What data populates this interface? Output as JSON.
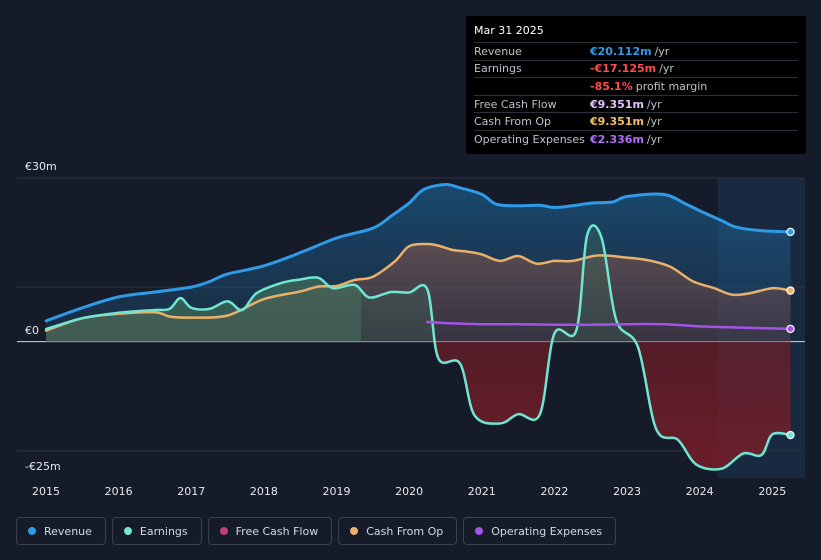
{
  "tooltip": {
    "date": "Mar 31 2025",
    "rows": [
      {
        "label": "Revenue",
        "value": "€20.112m",
        "unit": "/yr",
        "color": "#2f9be8"
      },
      {
        "label": "Earnings",
        "value": "-€17.125m",
        "unit": "/yr",
        "color": "#ff4d4d"
      },
      {
        "label": "",
        "value": "-85.1%",
        "unit": "profit margin",
        "color": "#ff4d4d"
      },
      {
        "label": "Free Cash Flow",
        "value": "€9.351m",
        "unit": "/yr",
        "color": "#e0c3ff"
      },
      {
        "label": "Cash From Op",
        "value": "€9.351m",
        "unit": "/yr",
        "color": "#f2c06c"
      },
      {
        "label": "Operating Expenses",
        "value": "€2.336m",
        "unit": "/yr",
        "color": "#b56cff"
      }
    ]
  },
  "legend": [
    {
      "label": "Revenue",
      "color": "#2f9be8"
    },
    {
      "label": "Earnings",
      "color": "#6fe5d2"
    },
    {
      "label": "Free Cash Flow",
      "color": "#c2407a"
    },
    {
      "label": "Cash From Op",
      "color": "#e9b06a"
    },
    {
      "label": "Operating Expenses",
      "color": "#a452ea"
    }
  ],
  "chart_data": {
    "type": "area",
    "title": "",
    "xlabel": "",
    "ylabel": "",
    "ylim": [
      -25,
      30
    ],
    "y_tick_labels": [
      "€30m",
      "€0",
      "-€25m"
    ],
    "y_ticks": [
      30,
      0,
      -25
    ],
    "x_tick_labels": [
      "2015",
      "2016",
      "2017",
      "2018",
      "2019",
      "2020",
      "2021",
      "2022",
      "2023",
      "2024",
      "2025"
    ],
    "x_ticks": [
      2015,
      2016,
      2017,
      2018,
      2019,
      2020,
      2021,
      2022,
      2023,
      2024,
      2025
    ],
    "xlim": [
      2014.6,
      2025.45
    ],
    "forecast_start": 2024.25,
    "series": [
      {
        "name": "Revenue",
        "color": "#2f9be8",
        "points": [
          [
            2015,
            3.8
          ],
          [
            2015.5,
            6.2
          ],
          [
            2016,
            8.2
          ],
          [
            2016.5,
            9.1
          ],
          [
            2017,
            10.0
          ],
          [
            2017.25,
            11.0
          ],
          [
            2017.5,
            12.4
          ],
          [
            2018,
            13.9
          ],
          [
            2018.5,
            16.3
          ],
          [
            2019,
            19.0
          ],
          [
            2019.5,
            20.8
          ],
          [
            2019.75,
            23.0
          ],
          [
            2020,
            25.4
          ],
          [
            2020.2,
            27.9
          ],
          [
            2020.5,
            28.8
          ],
          [
            2020.7,
            28.2
          ],
          [
            2021,
            27.0
          ],
          [
            2021.2,
            25.2
          ],
          [
            2021.5,
            24.9
          ],
          [
            2021.8,
            25.0
          ],
          [
            2022,
            24.6
          ],
          [
            2022.3,
            25.0
          ],
          [
            2022.5,
            25.4
          ],
          [
            2022.8,
            25.6
          ],
          [
            2023,
            26.6
          ],
          [
            2023.5,
            27.0
          ],
          [
            2023.8,
            25.3
          ],
          [
            2024,
            24.0
          ],
          [
            2024.3,
            22.2
          ],
          [
            2024.5,
            21.0
          ],
          [
            2024.8,
            20.4
          ],
          [
            2025.25,
            20.112
          ]
        ]
      },
      {
        "name": "Earnings",
        "color": "#6fe5d2",
        "points": [
          [
            2015,
            2.3
          ],
          [
            2015.5,
            4.3
          ],
          [
            2016,
            5.3
          ],
          [
            2016.5,
            5.8
          ],
          [
            2016.7,
            6.0
          ],
          [
            2016.85,
            8.0
          ],
          [
            2017,
            6.2
          ],
          [
            2017.25,
            6.0
          ],
          [
            2017.5,
            7.4
          ],
          [
            2017.7,
            5.8
          ],
          [
            2017.9,
            8.9
          ],
          [
            2018.25,
            10.8
          ],
          [
            2018.5,
            11.4
          ],
          [
            2018.75,
            11.7
          ],
          [
            2018.95,
            9.8
          ],
          [
            2019.25,
            10.4
          ],
          [
            2019.45,
            8.1
          ],
          [
            2019.75,
            9.1
          ],
          [
            2020,
            9.0
          ],
          [
            2020.25,
            9.6
          ],
          [
            2020.4,
            -3.0
          ],
          [
            2020.7,
            -4.0
          ],
          [
            2020.9,
            -13.5
          ],
          [
            2021.25,
            -15.0
          ],
          [
            2021.5,
            -13.3
          ],
          [
            2021.8,
            -13.3
          ],
          [
            2022,
            1.5
          ],
          [
            2022.3,
            2.0
          ],
          [
            2022.45,
            19.5
          ],
          [
            2022.65,
            19.0
          ],
          [
            2022.85,
            4.0
          ],
          [
            2023.15,
            -1.0
          ],
          [
            2023.4,
            -16.0
          ],
          [
            2023.7,
            -18.0
          ],
          [
            2023.95,
            -22.5
          ],
          [
            2024.3,
            -23.3
          ],
          [
            2024.6,
            -20.5
          ],
          [
            2024.85,
            -20.8
          ],
          [
            2025,
            -17.0
          ],
          [
            2025.25,
            -17.125
          ]
        ]
      },
      {
        "name": "Cash From Op",
        "color": "#e9b06a",
        "points": [
          [
            2015,
            2.0
          ],
          [
            2015.5,
            4.3
          ],
          [
            2016,
            5.1
          ],
          [
            2016.5,
            5.4
          ],
          [
            2016.7,
            4.6
          ],
          [
            2017,
            4.4
          ],
          [
            2017.5,
            4.8
          ],
          [
            2018,
            7.8
          ],
          [
            2018.5,
            9.2
          ],
          [
            2018.75,
            10.1
          ],
          [
            2019,
            10.2
          ],
          [
            2019.25,
            11.3
          ],
          [
            2019.5,
            11.9
          ],
          [
            2019.8,
            14.7
          ],
          [
            2020,
            17.5
          ],
          [
            2020.25,
            17.9
          ],
          [
            2020.4,
            17.6
          ],
          [
            2020.6,
            16.8
          ],
          [
            2020.8,
            16.5
          ],
          [
            2021,
            16.0
          ],
          [
            2021.25,
            14.8
          ],
          [
            2021.5,
            15.7
          ],
          [
            2021.75,
            14.3
          ],
          [
            2022,
            14.8
          ],
          [
            2022.25,
            14.8
          ],
          [
            2022.6,
            15.8
          ],
          [
            2023,
            15.4
          ],
          [
            2023.3,
            14.9
          ],
          [
            2023.6,
            13.7
          ],
          [
            2023.9,
            11.1
          ],
          [
            2024.2,
            9.8
          ],
          [
            2024.45,
            8.6
          ],
          [
            2024.7,
            8.9
          ],
          [
            2025,
            9.8
          ],
          [
            2025.25,
            9.351
          ]
        ]
      },
      {
        "name": "Operating Expenses",
        "color": "#a452ea",
        "points": [
          [
            2020.25,
            3.6
          ],
          [
            2020.5,
            3.4
          ],
          [
            2021,
            3.2
          ],
          [
            2021.5,
            3.2
          ],
          [
            2022,
            3.1
          ],
          [
            2022.5,
            3.1
          ],
          [
            2023,
            3.2
          ],
          [
            2023.5,
            3.2
          ],
          [
            2024,
            2.8
          ],
          [
            2024.5,
            2.6
          ],
          [
            2025.25,
            2.336
          ]
        ]
      }
    ]
  }
}
